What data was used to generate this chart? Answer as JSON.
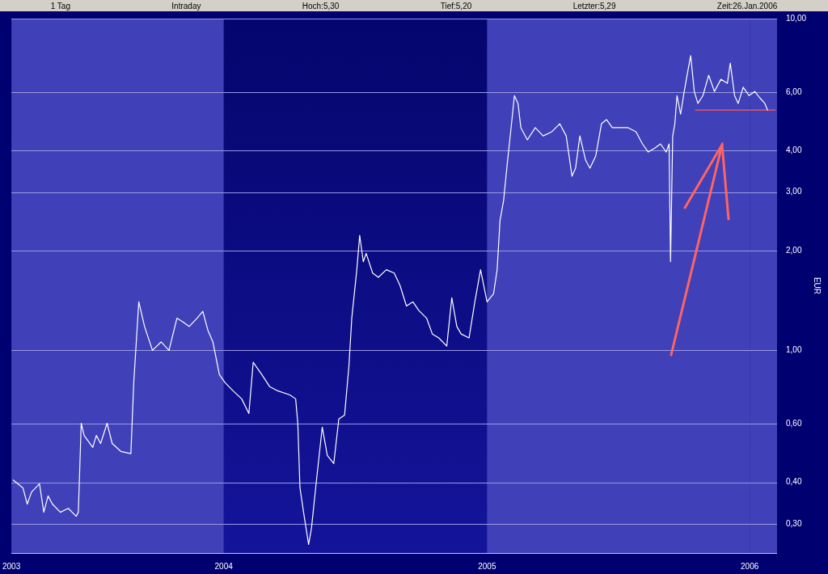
{
  "chart_data": {
    "type": "line",
    "ylabel": "EUR",
    "annotations": [
      "1 Tag",
      "Intraday",
      "Hoch:5,30",
      "Tief:5,20",
      "Letzter:5,29",
      "Zeit:26.Jan.2006"
    ],
    "xlim": [
      "2003-03-12",
      "2006-02-08"
    ],
    "xticks": [
      {
        "value": "2003-03-12",
        "label": "2003"
      },
      {
        "value": "2004-01-01",
        "label": "2004"
      },
      {
        "value": "2005-01-01",
        "label": "2005"
      },
      {
        "value": "2006-01-01",
        "label": "2006"
      }
    ],
    "ylim": [
      0.245,
      10
    ],
    "yticks": [
      {
        "value": 0.3,
        "label": "0,30"
      },
      {
        "value": 0.4,
        "label": "0,40"
      },
      {
        "value": 0.6,
        "label": "0,60"
      },
      {
        "value": 1,
        "label": "1,00"
      },
      {
        "value": 2,
        "label": "2,00"
      },
      {
        "value": 3,
        "label": "3,00"
      },
      {
        "value": 4,
        "label": "4,00"
      },
      {
        "value": 6,
        "label": "6,00"
      },
      {
        "value": 10,
        "label": "10,00"
      }
    ],
    "log": true,
    "grid": "y",
    "bands": [
      {
        "axis": "x",
        "from": "2003-03-12",
        "to": "2004-01-01",
        "color": "#4040b8"
      },
      {
        "axis": "x",
        "from": "2005-01-01",
        "to": "2006-01-01",
        "color": "#4040b8"
      },
      {
        "axis": "x",
        "from": "2006-01-01",
        "to": "2006-02-08",
        "color": "#4040b8"
      }
    ],
    "series": [
      {
        "color": "#ffffff",
        "x": [
          "2003-03-14",
          "2003-03-28",
          "2003-04-03",
          "2003-04-09",
          "2003-04-20",
          "2003-04-26",
          "2003-05-02",
          "2003-05-08",
          "2003-05-19",
          "2003-05-30",
          "2003-06-10",
          "2003-06-13",
          "2003-06-17",
          "2003-06-21",
          "2003-07-03",
          "2003-07-08",
          "2003-07-14",
          "2003-07-23",
          "2003-07-30",
          "2003-08-11",
          "2003-08-25",
          "2003-08-29",
          "2003-09-05",
          "2003-09-13",
          "2003-09-24",
          "2003-10-06",
          "2003-10-17",
          "2003-10-28",
          "2003-11-05",
          "2003-11-14",
          "2003-11-25",
          "2003-12-03",
          "2003-12-10",
          "2003-12-17",
          "2003-12-26",
          "2004-01-03",
          "2004-01-14",
          "2004-01-26",
          "2004-02-05",
          "2004-02-11",
          "2004-02-23",
          "2004-03-05",
          "2004-03-16",
          "2004-04-02",
          "2004-04-10",
          "2004-04-13",
          "2004-04-16",
          "2004-04-21",
          "2004-04-28",
          "2004-05-02",
          "2004-05-09",
          "2004-05-17",
          "2004-05-24",
          "2004-06-02",
          "2004-06-09",
          "2004-06-17",
          "2004-06-23",
          "2004-06-27",
          "2004-07-04",
          "2004-07-08",
          "2004-07-13",
          "2004-07-17",
          "2004-07-26",
          "2004-08-03",
          "2004-08-14",
          "2004-08-25",
          "2004-09-02",
          "2004-09-11",
          "2004-09-20",
          "2004-09-28",
          "2004-10-09",
          "2004-10-17",
          "2004-10-26",
          "2004-11-06",
          "2004-11-13",
          "2004-11-20",
          "2004-11-26",
          "2004-12-07",
          "2004-12-15",
          "2004-12-23",
          "2005-01-01",
          "2005-01-10",
          "2005-01-15",
          "2005-01-19",
          "2005-01-24",
          "2005-01-29",
          "2005-02-04",
          "2005-02-08",
          "2005-02-13",
          "2005-02-17",
          "2005-02-26",
          "2005-03-09",
          "2005-03-20",
          "2005-04-01",
          "2005-04-12",
          "2005-04-21",
          "2005-04-29",
          "2005-05-04",
          "2005-05-10",
          "2005-05-18",
          "2005-05-24",
          "2005-06-01",
          "2005-06-09",
          "2005-06-16",
          "2005-06-24",
          "2005-07-05",
          "2005-07-16",
          "2005-07-27",
          "2005-08-05",
          "2005-08-13",
          "2005-08-22",
          "2005-08-30",
          "2005-09-07",
          "2005-09-11",
          "2005-09-13",
          "2005-09-16",
          "2005-09-19",
          "2005-09-22",
          "2005-09-27",
          "2005-10-02",
          "2005-10-08",
          "2005-10-11",
          "2005-10-16",
          "2005-10-21",
          "2005-10-28",
          "2005-11-05",
          "2005-11-13",
          "2005-11-22",
          "2005-12-01",
          "2005-12-05",
          "2005-12-11",
          "2005-12-16",
          "2005-12-23",
          "2005-12-31",
          "2006-01-08",
          "2006-01-15",
          "2006-01-22",
          "2006-01-26"
        ],
        "values": [
          0.407,
          0.385,
          0.344,
          0.374,
          0.396,
          0.325,
          0.364,
          0.344,
          0.325,
          0.334,
          0.316,
          0.325,
          0.603,
          0.554,
          0.51,
          0.554,
          0.524,
          0.603,
          0.524,
          0.496,
          0.488,
          0.799,
          1.4,
          1.18,
          1.0,
          1.06,
          1.0,
          1.25,
          1.22,
          1.18,
          1.25,
          1.31,
          1.15,
          1.06,
          0.845,
          0.799,
          0.755,
          0.714,
          0.645,
          0.92,
          0.845,
          0.777,
          0.755,
          0.734,
          0.714,
          0.603,
          0.385,
          0.325,
          0.26,
          0.291,
          0.407,
          0.587,
          0.482,
          0.456,
          0.621,
          0.638,
          0.894,
          1.25,
          1.75,
          2.22,
          1.85,
          1.96,
          1.71,
          1.66,
          1.75,
          1.71,
          1.57,
          1.36,
          1.4,
          1.32,
          1.25,
          1.12,
          1.09,
          1.03,
          1.44,
          1.18,
          1.12,
          1.09,
          1.4,
          1.75,
          1.4,
          1.48,
          1.75,
          2.46,
          2.83,
          3.64,
          4.82,
          5.86,
          5.55,
          4.69,
          4.31,
          4.69,
          4.43,
          4.56,
          4.82,
          4.43,
          3.35,
          3.54,
          4.43,
          3.74,
          3.54,
          3.85,
          4.82,
          4.96,
          4.69,
          4.69,
          4.69,
          4.56,
          4.19,
          3.96,
          4.07,
          4.19,
          3.96,
          4.19,
          1.85,
          4.43,
          4.82,
          5.86,
          5.15,
          6.03,
          7.14,
          7.73,
          6.03,
          5.55,
          5.86,
          6.75,
          6.03,
          6.56,
          6.38,
          7.34,
          5.86,
          5.55,
          6.21,
          5.86,
          6.03,
          5.77,
          5.55,
          5.29
        ]
      },
      {
        "color": "#ff5a5a",
        "x": [
          "2005-10-17",
          "2006-02-06"
        ],
        "values": [
          5.3,
          5.3
        ]
      }
    ]
  }
}
